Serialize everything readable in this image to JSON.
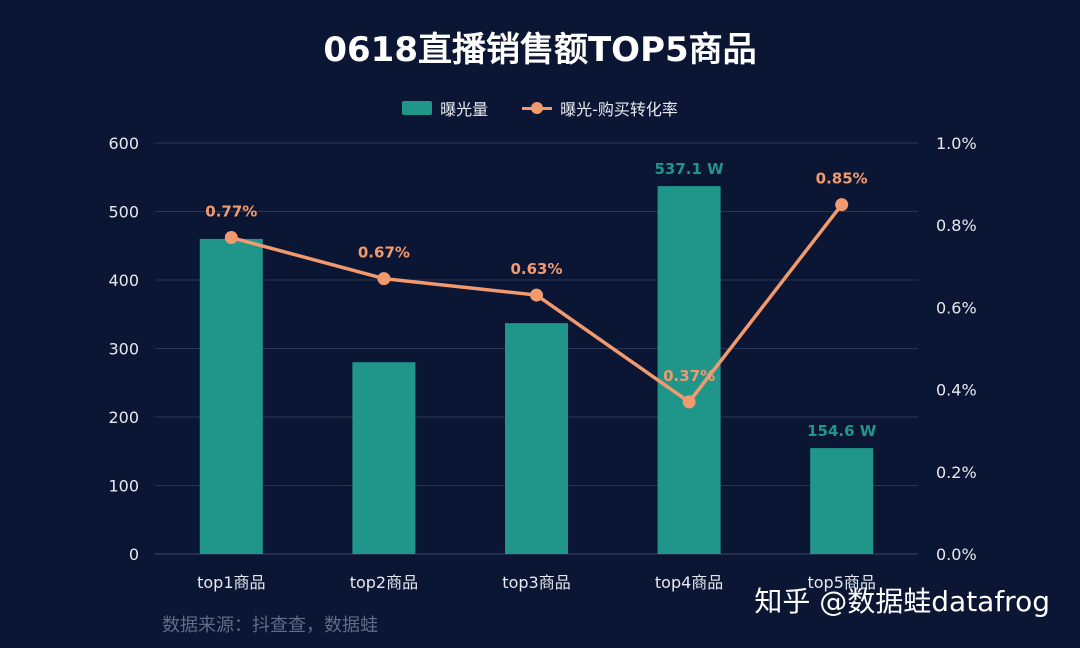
{
  "title": "0618直播销售额TOP5商品",
  "legend": {
    "bar_label": "曝光量",
    "line_label": "曝光-购买转化率"
  },
  "source": "数据来源：抖查查，数据蛙",
  "credit": "知乎 @数据蛙datafrog",
  "colors": {
    "background": "#0b1634",
    "bar": "#20968b",
    "line": "#f29a6e",
    "grid": "#2a3553",
    "axis_text": "#e6e9f0"
  },
  "chart_data": {
    "type": "bar",
    "categories": [
      "top1商品",
      "top2商品",
      "top3商品",
      "top4商品",
      "top5商品"
    ],
    "series": [
      {
        "name": "曝光量",
        "type": "bar",
        "axis": "left",
        "values": [
          460,
          280,
          337,
          537.1,
          154.6
        ],
        "data_labels": [
          "",
          "",
          "",
          "537.1 W",
          "154.6 W"
        ]
      },
      {
        "name": "曝光-购买转化率",
        "type": "line",
        "axis": "right",
        "values": [
          0.77,
          0.67,
          0.63,
          0.37,
          0.85
        ],
        "data_labels": [
          "0.77%",
          "0.67%",
          "0.63%",
          "0.37%",
          "0.85%"
        ]
      }
    ],
    "left_axis": {
      "ylim": [
        0,
        600
      ],
      "ticks": [
        "0",
        "100",
        "200",
        "300",
        "400",
        "500",
        "600"
      ]
    },
    "right_axis": {
      "ylim": [
        0,
        1.0
      ],
      "ticks": [
        "0.0%",
        "0.2%",
        "0.4%",
        "0.6%",
        "0.8%",
        "1.0%"
      ]
    },
    "grid": true,
    "legend_position": "top-center"
  }
}
